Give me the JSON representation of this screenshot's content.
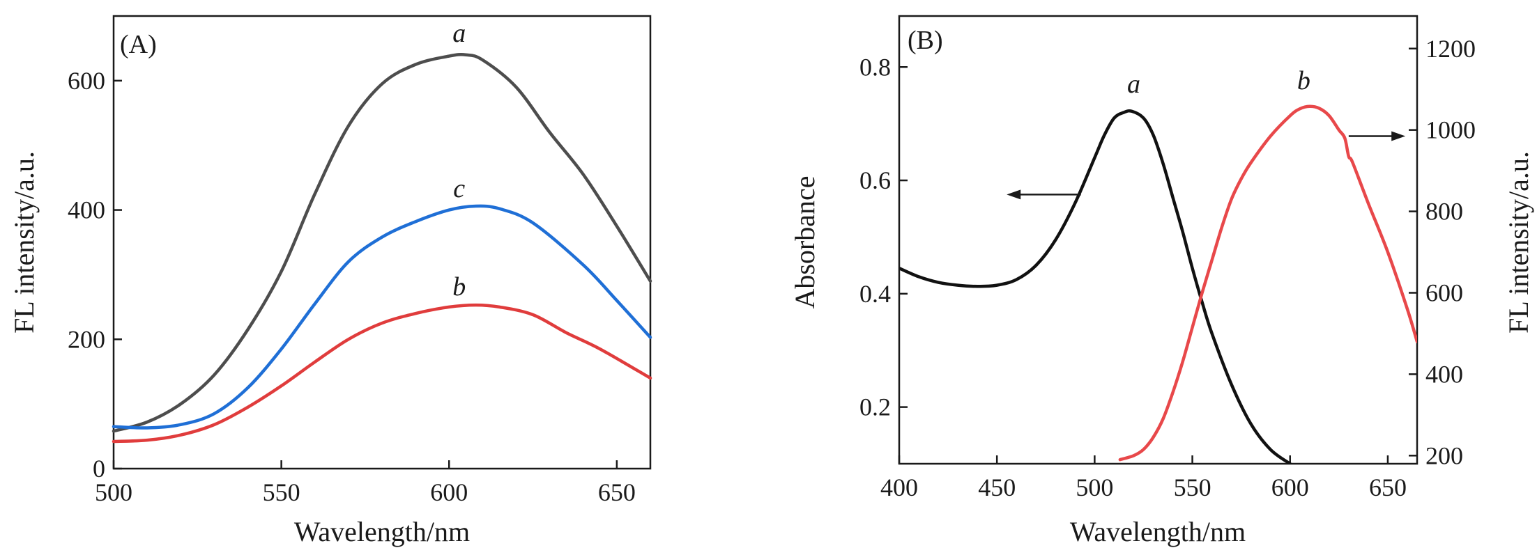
{
  "chart_data": [
    {
      "panel": "(A)",
      "type": "line",
      "xlabel": "Wavelength/nm",
      "ylabel": "FL intensity/a.u.",
      "xlim": [
        500,
        660
      ],
      "ylim": [
        0,
        700
      ],
      "xticks": [
        500,
        550,
        600,
        650
      ],
      "yticks": [
        0,
        200,
        400,
        600
      ],
      "xtick_labels": [
        "500",
        "550",
        "600",
        "650"
      ],
      "ytick_labels": [
        "0",
        "200",
        "400",
        "600"
      ],
      "grid": false,
      "series": [
        {
          "name": "a",
          "color": "#4d4d4d",
          "label_pos": [
            603,
            660
          ],
          "x": [
            500,
            510,
            520,
            530,
            540,
            550,
            560,
            570,
            580,
            590,
            600,
            605,
            610,
            620,
            630,
            640,
            650,
            660
          ],
          "y": [
            58,
            72,
            100,
            145,
            215,
            305,
            425,
            530,
            595,
            625,
            638,
            640,
            632,
            590,
            520,
            455,
            375,
            290
          ]
        },
        {
          "name": "c",
          "color": "#1f6fd6",
          "label_pos": [
            603,
            420
          ],
          "x": [
            500,
            510,
            520,
            530,
            540,
            550,
            560,
            570,
            580,
            590,
            600,
            608,
            615,
            625,
            640,
            650,
            660
          ],
          "y": [
            65,
            63,
            68,
            85,
            125,
            185,
            255,
            320,
            358,
            382,
            400,
            406,
            402,
            380,
            315,
            260,
            203
          ]
        },
        {
          "name": "b",
          "color": "#e03c3c",
          "label_pos": [
            603,
            268
          ],
          "x": [
            500,
            510,
            520,
            530,
            540,
            550,
            560,
            570,
            580,
            590,
            600,
            608,
            615,
            625,
            635,
            645,
            660
          ],
          "y": [
            42,
            44,
            52,
            68,
            95,
            128,
            165,
            200,
            225,
            240,
            250,
            253,
            250,
            238,
            210,
            185,
            140
          ]
        }
      ]
    },
    {
      "panel": "(B)",
      "type": "line",
      "xlabel": "Wavelength/nm",
      "ylabel": "Absorbance",
      "y2label": "FL intensity/a.u.",
      "xlim": [
        400,
        665
      ],
      "ylim": [
        0.1,
        0.89
      ],
      "y2lim": [
        180,
        1280
      ],
      "xticks": [
        400,
        450,
        500,
        550,
        600,
        650
      ],
      "yticks": [
        0.2,
        0.4,
        0.6,
        0.8
      ],
      "y2ticks": [
        200,
        400,
        600,
        800,
        1000,
        1200
      ],
      "xtick_labels": [
        "400",
        "450",
        "500",
        "550",
        "600",
        "650"
      ],
      "ytick_labels": [
        "0.2",
        "0.4",
        "0.6",
        "0.8"
      ],
      "y2tick_labels": [
        "200",
        "400",
        "600",
        "800",
        "1000",
        "1200"
      ],
      "grid": false,
      "series": [
        {
          "name": "a",
          "axis": "left",
          "color": "#111111",
          "label_pos": [
            520,
            0.755
          ],
          "x": [
            400,
            410,
            420,
            430,
            440,
            450,
            460,
            470,
            480,
            490,
            500,
            505,
            510,
            515,
            519,
            525,
            530,
            535,
            540,
            545,
            550,
            555,
            560,
            570,
            580,
            590,
            600
          ],
          "y": [
            0.445,
            0.43,
            0.42,
            0.415,
            0.413,
            0.415,
            0.425,
            0.45,
            0.495,
            0.56,
            0.64,
            0.68,
            0.71,
            0.72,
            0.722,
            0.71,
            0.68,
            0.63,
            0.57,
            0.51,
            0.445,
            0.385,
            0.33,
            0.24,
            0.17,
            0.125,
            0.1
          ]
        },
        {
          "name": "b",
          "axis": "right",
          "color": "#e8484a",
          "label_pos": [
            607,
            1100
          ],
          "x": [
            513,
            520,
            525,
            530,
            535,
            540,
            545,
            550,
            555,
            560,
            565,
            570,
            575,
            580,
            590,
            600,
            605,
            610,
            615,
            620,
            625,
            628,
            630,
            632,
            640,
            650,
            660,
            665
          ],
          "y": [
            190,
            200,
            215,
            245,
            290,
            355,
            430,
            515,
            600,
            680,
            760,
            830,
            880,
            920,
            985,
            1035,
            1052,
            1058,
            1053,
            1035,
            1000,
            980,
            935,
            920,
            820,
            700,
            560,
            480
          ]
        }
      ],
      "annotations": [
        {
          "type": "arrow",
          "direction": "left",
          "text": "",
          "x_from": 493,
          "x_to": 455,
          "y": 0.575,
          "axis": "left"
        },
        {
          "type": "arrow",
          "direction": "right",
          "text": "",
          "x_from": 630,
          "x_to": 659,
          "y": 985,
          "axis": "right"
        }
      ]
    }
  ]
}
